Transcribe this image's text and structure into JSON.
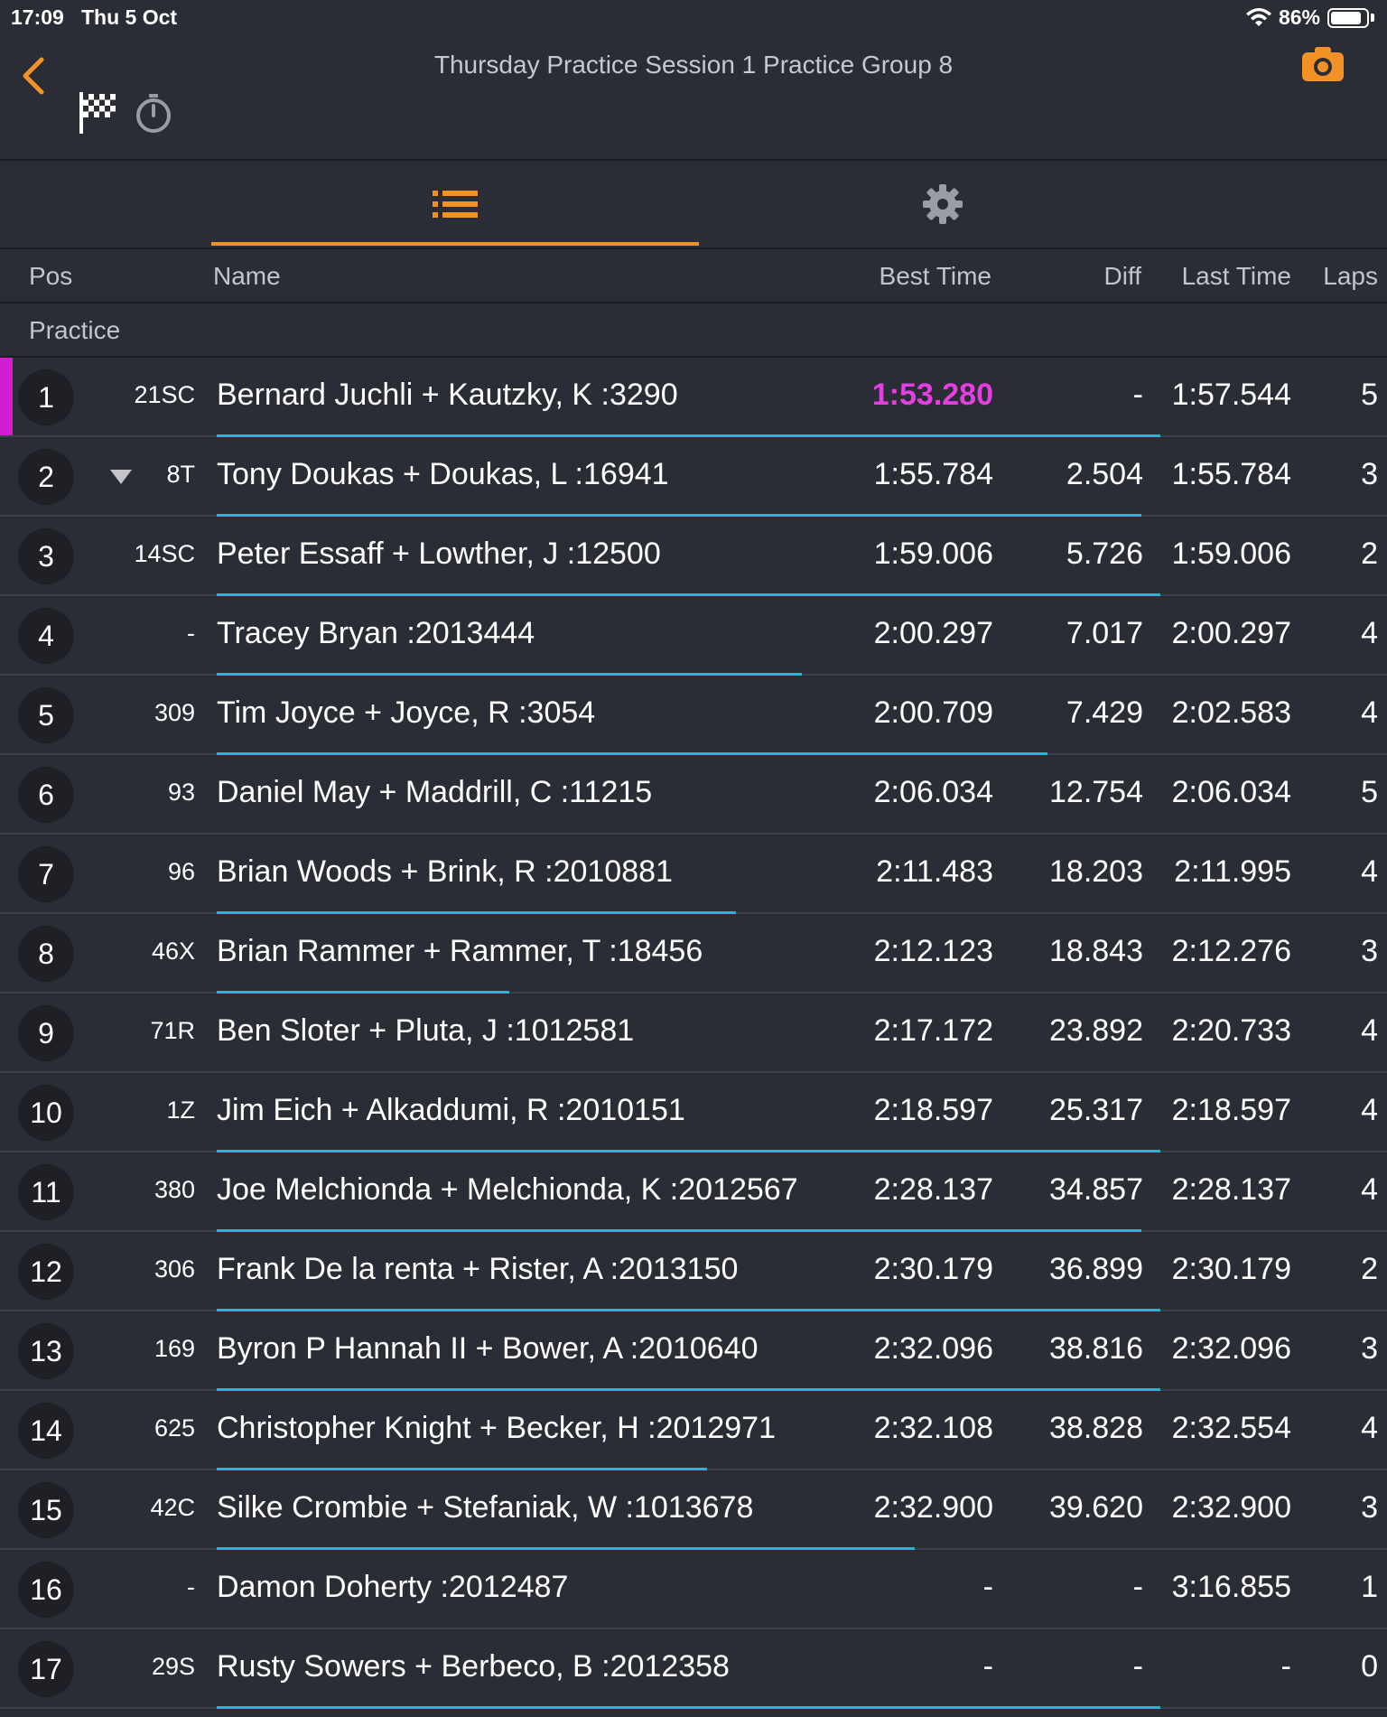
{
  "status_bar": {
    "time": "17:09",
    "date": "Thu 5 Oct",
    "battery": "86%",
    "battery_level": 0.86
  },
  "nav": {
    "title": "Thursday Practice Session 1 Practice Group 8"
  },
  "tabs": [
    {
      "icon": "list-icon",
      "active": true
    },
    {
      "icon": "gear-icon",
      "active": false
    }
  ],
  "columns": {
    "pos": "Pos",
    "name": "Name",
    "best": "Best Time",
    "diff": "Diff",
    "last": "Last Time",
    "laps": "Laps"
  },
  "section": "Practice",
  "colors": {
    "accent": "#f29226",
    "fastest": "#e53ee1",
    "highlight": "#d31ed0",
    "progress": "#29b6d4"
  },
  "rows": [
    {
      "pos": "1",
      "num": "21SC",
      "name": "Bernard Juchli + Kautzky, K :3290",
      "best": "1:53.280",
      "diff": "-",
      "last": "1:57.544",
      "laps": "5",
      "fastest": true,
      "highlight": true,
      "progress": 1.0
    },
    {
      "pos": "2",
      "num": "8T",
      "name": "Tony Doukas + Doukas, L :16941",
      "best": "1:55.784",
      "diff": "2.504",
      "last": "1:55.784",
      "laps": "3",
      "indicator": "down",
      "progress": 0.98
    },
    {
      "pos": "3",
      "num": "14SC",
      "name": "Peter Essaff + Lowther, J :12500",
      "best": "1:59.006",
      "diff": "5.726",
      "last": "1:59.006",
      "laps": "2",
      "progress": 1.0
    },
    {
      "pos": "4",
      "num": "-",
      "name": "Tracey Bryan :2013444",
      "best": "2:00.297",
      "diff": "7.017",
      "last": "2:00.297",
      "laps": "4",
      "progress": 0.62
    },
    {
      "pos": "5",
      "num": "309",
      "name": "Tim Joyce + Joyce, R :3054",
      "best": "2:00.709",
      "diff": "7.429",
      "last": "2:02.583",
      "laps": "4",
      "progress": 0.88
    },
    {
      "pos": "6",
      "num": "93",
      "name": "Daniel May + Maddrill, C :11215",
      "best": "2:06.034",
      "diff": "12.754",
      "last": "2:06.034",
      "laps": "5",
      "progress": 0.0
    },
    {
      "pos": "7",
      "num": "96",
      "name": "Brian Woods + Brink, R :2010881",
      "best": "2:11.483",
      "diff": "18.203",
      "last": "2:11.995",
      "laps": "4",
      "progress": 0.55
    },
    {
      "pos": "8",
      "num": "46X",
      "name": "Brian Rammer + Rammer, T :18456",
      "best": "2:12.123",
      "diff": "18.843",
      "last": "2:12.276",
      "laps": "3",
      "progress": 0.31
    },
    {
      "pos": "9",
      "num": "71R",
      "name": "Ben Sloter + Pluta, J :1012581",
      "best": "2:17.172",
      "diff": "23.892",
      "last": "2:20.733",
      "laps": "4",
      "progress": 0.0
    },
    {
      "pos": "10",
      "num": "1Z",
      "name": "Jim Eich + Alkaddumi, R :2010151",
      "best": "2:18.597",
      "diff": "25.317",
      "last": "2:18.597",
      "laps": "4",
      "progress": 1.0
    },
    {
      "pos": "11",
      "num": "380",
      "name": "Joe Melchionda + Melchionda, K :2012567",
      "best": "2:28.137",
      "diff": "34.857",
      "last": "2:28.137",
      "laps": "4",
      "progress": 0.98
    },
    {
      "pos": "12",
      "num": "306",
      "name": "Frank De la renta + Rister, A :2013150",
      "best": "2:30.179",
      "diff": "36.899",
      "last": "2:30.179",
      "laps": "2",
      "progress": 1.0
    },
    {
      "pos": "13",
      "num": "169",
      "name": "Byron P Hannah II + Bower, A :2010640",
      "best": "2:32.096",
      "diff": "38.816",
      "last": "2:32.096",
      "laps": "3",
      "progress": 1.0
    },
    {
      "pos": "14",
      "num": "625",
      "name": "Christopher Knight + Becker, H :2012971",
      "best": "2:32.108",
      "diff": "38.828",
      "last": "2:32.554",
      "laps": "4",
      "progress": 0.52
    },
    {
      "pos": "15",
      "num": "42C",
      "name": "Silke Crombie + Stefaniak, W :1013678",
      "best": "2:32.900",
      "diff": "39.620",
      "last": "2:32.900",
      "laps": "3",
      "progress": 0.74
    },
    {
      "pos": "16",
      "num": "-",
      "name": "Damon Doherty :2012487",
      "best": "-",
      "diff": "-",
      "last": "3:16.855",
      "laps": "1",
      "progress": 0.0
    },
    {
      "pos": "17",
      "num": "29S",
      "name": "Rusty Sowers + Berbeco, B :2012358",
      "best": "-",
      "diff": "-",
      "last": "-",
      "laps": "0",
      "progress": 1.0
    }
  ]
}
